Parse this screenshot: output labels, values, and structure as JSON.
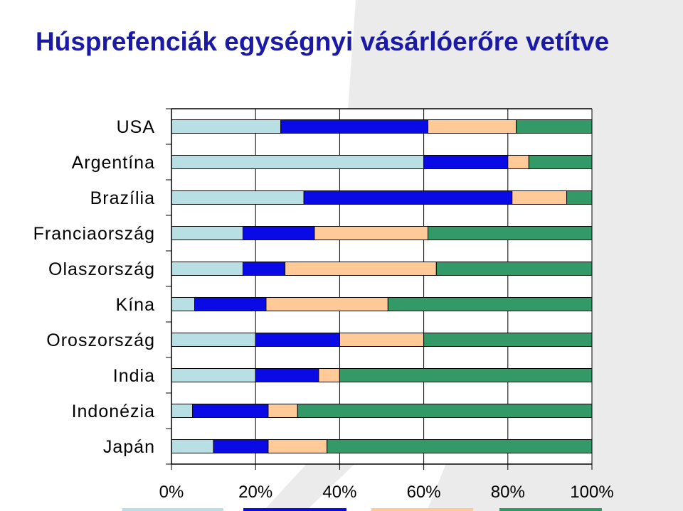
{
  "chart_data": {
    "type": "bar",
    "orientation": "horizontal",
    "stacked": "percent",
    "title": "Húsprefenciák egységnyi vásárlóerőre vetítve",
    "categories": [
      "USA",
      "Argentína",
      "Brazília",
      "Franciaország",
      "Olaszország",
      "Kína",
      "Oroszország",
      "India",
      "Indonézia",
      "Japán"
    ],
    "series": [
      {
        "color": "#b8dfe3",
        "values": [
          26,
          60,
          31.5,
          17,
          17,
          5.5,
          20,
          20,
          5,
          10
        ]
      },
      {
        "color": "#0a0ae6",
        "values": [
          35,
          20,
          49.5,
          17,
          10,
          17,
          20,
          15,
          18,
          13
        ]
      },
      {
        "color": "#ffc998",
        "values": [
          21,
          5,
          13,
          27,
          36,
          29,
          20,
          5,
          7,
          14
        ]
      },
      {
        "color": "#339966",
        "values": [
          18,
          15,
          6,
          39,
          37,
          48.5,
          40,
          60,
          70,
          63
        ]
      }
    ],
    "xlim": [
      0,
      100
    ],
    "xticks": [
      "0%",
      "20%",
      "40%",
      "60%",
      "80%",
      "100%"
    ],
    "grid": true,
    "legend": "bottom"
  }
}
